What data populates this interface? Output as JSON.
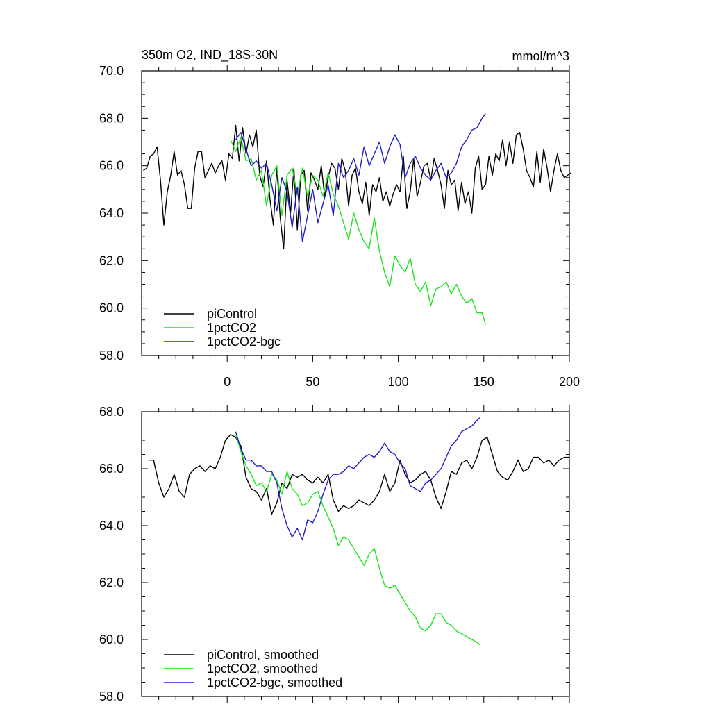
{
  "chart_data": [
    {
      "type": "line",
      "title_left": "350m O2, IND_18S-30N",
      "title_right": "mmol/m^3",
      "xlim": [
        -50,
        200
      ],
      "ylim": [
        58,
        70
      ],
      "xticks": [
        0,
        50,
        100,
        150,
        200
      ],
      "xtick_labels": [
        "0",
        "50",
        "100",
        "150",
        "200"
      ],
      "yticks": [
        58,
        60,
        62,
        64,
        66,
        68,
        70
      ],
      "ytick_labels": [
        "58.0",
        "60.0",
        "62.0",
        "64.0",
        "66.0",
        "68.0",
        "70.0"
      ],
      "legend_position": "bottom-left",
      "series": [
        {
          "name": "piControl",
          "color": "#000000",
          "x": [
            -49,
            -47,
            -45,
            -43,
            -41,
            -39,
            -37,
            -35,
            -33,
            -31,
            -29,
            -27,
            -25,
            -23,
            -21,
            -19,
            -17,
            -15,
            -13,
            -11,
            -9,
            -7,
            -5,
            -3,
            -1,
            1,
            3,
            5,
            7,
            9,
            11,
            13,
            15,
            17,
            19,
            21,
            23,
            25,
            27,
            29,
            31,
            33,
            35,
            37,
            39,
            41,
            43,
            45,
            47,
            49,
            51,
            53,
            55,
            57,
            59,
            61,
            63,
            65,
            67,
            69,
            71,
            73,
            75,
            77,
            79,
            81,
            83,
            85,
            87,
            89,
            91,
            93,
            95,
            97,
            99,
            101,
            103,
            105,
            107,
            109,
            111,
            113,
            115,
            117,
            119,
            121,
            123,
            125,
            127,
            129,
            131,
            133,
            135,
            137,
            139,
            141,
            143,
            145,
            147,
            149,
            151,
            153,
            155,
            157,
            159,
            161,
            163,
            165,
            167,
            169,
            171,
            173,
            175,
            177,
            179,
            181,
            183,
            185,
            187,
            189,
            191,
            193,
            195,
            197,
            199,
            201
          ],
          "values": [
            65.8,
            65.9,
            66.4,
            66.5,
            66.8,
            65.4,
            63.5,
            64.9,
            65.6,
            66.6,
            65.6,
            65.8,
            65.2,
            64.2,
            64.2,
            65.9,
            66.6,
            66.6,
            65.5,
            65.8,
            66.1,
            65.7,
            66.0,
            66.2,
            65.4,
            66.5,
            66.3,
            67.7,
            66.2,
            67.6,
            66.5,
            67.3,
            66.8,
            67.5,
            65.6,
            65.1,
            66.2,
            64.6,
            63.5,
            65.9,
            63.8,
            62.5,
            65.4,
            64.0,
            65.9,
            63.3,
            65.6,
            65.8,
            64.1,
            65.7,
            65.4,
            65.0,
            66.0,
            64.7,
            65.5,
            66.1,
            65.9,
            65.0,
            66.3,
            65.8,
            64.3,
            65.6,
            65.9,
            64.9,
            64.4,
            65.3,
            63.9,
            65.2,
            64.9,
            65.5,
            64.5,
            64.9,
            64.3,
            64.8,
            65.2,
            64.9,
            66.4,
            64.2,
            64.9,
            66.3,
            64.7,
            65.3,
            66.0,
            66.1,
            65.4,
            66.3,
            65.8,
            65.2,
            64.2,
            65.8,
            65.2,
            65.4,
            64.1,
            65.3,
            64.4,
            64.9,
            64.0,
            65.9,
            66.4,
            65.0,
            65.2,
            66.4,
            65.6,
            66.5,
            66.2,
            67.1,
            66.0,
            67.0,
            66.1,
            67.3,
            67.4,
            66.7,
            65.8,
            65.5,
            65.1,
            66.6,
            65.3,
            66.7,
            65.9,
            64.9,
            65.8,
            66.5,
            65.8,
            65.5,
            65.6,
            65.7
          ]
        },
        {
          "name": "1pctCO2",
          "color": "#19e619",
          "x": [
            2,
            5,
            8,
            11,
            14,
            17,
            20,
            23,
            26,
            29,
            32,
            35,
            38,
            41,
            44,
            47,
            50,
            53,
            56,
            59,
            62,
            65,
            68,
            71,
            74,
            77,
            80,
            83,
            86,
            89,
            92,
            95,
            98,
            101,
            104,
            107,
            110,
            113,
            116,
            119,
            122,
            125,
            128,
            131,
            134,
            137,
            140,
            143,
            146,
            149,
            151
          ],
          "values": [
            67.1,
            66.6,
            67.2,
            66.2,
            66.3,
            65.4,
            65.8,
            64.3,
            65.6,
            66.0,
            63.9,
            65.6,
            65.9,
            64.8,
            65.9,
            64.7,
            65.6,
            65.4,
            64.7,
            65.7,
            64.8,
            64.3,
            63.6,
            62.9,
            64.0,
            63.3,
            62.8,
            62.5,
            63.8,
            62.4,
            61.5,
            60.9,
            62.2,
            61.8,
            61.5,
            62.1,
            61.0,
            60.7,
            61.1,
            60.1,
            60.8,
            60.9,
            61.1,
            60.6,
            61.0,
            60.5,
            60.2,
            60.4,
            59.8,
            59.8,
            59.3
          ]
        },
        {
          "name": "1pctCO2-bgc",
          "color": "#1e1ec8",
          "x": [
            5,
            8,
            11,
            14,
            17,
            20,
            23,
            26,
            29,
            32,
            35,
            38,
            41,
            44,
            47,
            50,
            53,
            56,
            59,
            62,
            65,
            68,
            71,
            74,
            77,
            80,
            83,
            86,
            89,
            92,
            95,
            98,
            101,
            104,
            107,
            110,
            113,
            116,
            119,
            122,
            125,
            128,
            131,
            134,
            137,
            140,
            143,
            146,
            149,
            151
          ],
          "values": [
            67.1,
            67.4,
            66.7,
            66.0,
            66.2,
            65.9,
            66.1,
            65.2,
            64.1,
            65.5,
            64.9,
            63.4,
            65.1,
            62.8,
            63.9,
            65.0,
            63.6,
            64.4,
            65.2,
            63.9,
            66.1,
            65.5,
            65.8,
            66.3,
            65.6,
            66.8,
            66.0,
            66.5,
            67.0,
            66.1,
            66.8,
            67.3,
            66.9,
            65.5,
            66.1,
            66.4,
            65.9,
            65.6,
            65.4,
            65.8,
            66.1,
            65.5,
            65.7,
            66.1,
            66.8,
            67.1,
            67.5,
            67.6,
            68.0,
            68.2
          ]
        }
      ]
    },
    {
      "type": "line",
      "xlim": [
        -50,
        200
      ],
      "ylim": [
        58,
        68
      ],
      "xticks": [
        0,
        50,
        100,
        150,
        200
      ],
      "yticks": [
        58,
        60,
        62,
        64,
        66,
        68
      ],
      "ytick_labels": [
        "58.0",
        "60.0",
        "62.0",
        "64.0",
        "66.0",
        "68.0"
      ],
      "legend_position": "bottom-left",
      "series": [
        {
          "name": "piControl, smoothed",
          "color": "#000000",
          "x": [
            -46,
            -43,
            -40,
            -37,
            -34,
            -31,
            -28,
            -25,
            -22,
            -19,
            -16,
            -13,
            -10,
            -7,
            -4,
            -1,
            2,
            5,
            8,
            11,
            14,
            17,
            20,
            23,
            26,
            29,
            32,
            35,
            38,
            41,
            44,
            47,
            50,
            53,
            56,
            59,
            62,
            65,
            68,
            71,
            74,
            77,
            80,
            83,
            86,
            89,
            92,
            95,
            98,
            101,
            104,
            107,
            110,
            113,
            116,
            119,
            122,
            125,
            128,
            131,
            134,
            137,
            140,
            143,
            146,
            149,
            152,
            155,
            158,
            161,
            164,
            167,
            170,
            173,
            176,
            179,
            182,
            185,
            188,
            191,
            194,
            197,
            200
          ],
          "values": [
            66.3,
            66.3,
            65.5,
            65.0,
            65.3,
            65.8,
            65.2,
            65.0,
            65.8,
            66.0,
            66.1,
            65.9,
            66.1,
            66.0,
            66.4,
            67.0,
            67.2,
            67.1,
            66.8,
            65.7,
            65.3,
            65.2,
            64.9,
            65.3,
            64.4,
            64.8,
            65.5,
            65.3,
            65.8,
            65.7,
            65.8,
            65.6,
            65.5,
            65.7,
            65.5,
            65.8,
            64.9,
            64.5,
            64.7,
            64.6,
            64.7,
            64.9,
            64.8,
            64.7,
            64.9,
            65.2,
            65.8,
            65.2,
            65.5,
            66.3,
            65.8,
            65.5,
            65.6,
            65.8,
            65.9,
            65.6,
            65.0,
            64.6,
            65.2,
            65.9,
            65.8,
            66.2,
            66.3,
            66.0,
            66.4,
            67.0,
            67.1,
            66.5,
            65.9,
            65.7,
            65.6,
            65.9,
            66.3,
            65.9,
            66.0,
            66.4,
            66.4,
            66.2,
            66.3,
            66.1,
            66.3,
            66.4,
            66.4
          ]
        },
        {
          "name": "1pctCO2, smoothed",
          "color": "#19e619",
          "x": [
            5,
            8,
            11,
            14,
            17,
            20,
            23,
            26,
            29,
            32,
            35,
            38,
            41,
            44,
            47,
            50,
            53,
            56,
            59,
            62,
            65,
            68,
            71,
            74,
            77,
            80,
            83,
            86,
            89,
            92,
            95,
            98,
            101,
            104,
            107,
            110,
            113,
            116,
            119,
            122,
            125,
            128,
            131,
            134,
            137,
            140,
            143,
            146,
            148
          ],
          "values": [
            67.2,
            66.6,
            66.1,
            65.8,
            65.4,
            65.5,
            65.2,
            65.8,
            65.6,
            65.1,
            65.9,
            65.3,
            65.1,
            64.7,
            64.8,
            65.1,
            65.2,
            64.7,
            64.3,
            63.9,
            63.3,
            63.6,
            63.5,
            63.2,
            62.9,
            62.6,
            63.0,
            63.2,
            62.5,
            61.9,
            61.8,
            61.9,
            61.6,
            61.3,
            61.0,
            60.8,
            60.4,
            60.3,
            60.5,
            60.9,
            60.9,
            60.6,
            60.5,
            60.3,
            60.2,
            60.1,
            60.0,
            59.9,
            59.8
          ]
        },
        {
          "name": "1pctCO2-bgc, smoothed",
          "color": "#1e1ec8",
          "x": [
            5,
            8,
            11,
            14,
            17,
            20,
            23,
            26,
            29,
            32,
            35,
            38,
            41,
            44,
            47,
            50,
            53,
            56,
            59,
            62,
            65,
            68,
            71,
            74,
            77,
            80,
            83,
            86,
            89,
            92,
            95,
            98,
            101,
            104,
            107,
            110,
            113,
            116,
            119,
            122,
            125,
            128,
            131,
            134,
            137,
            140,
            143,
            146,
            148
          ],
          "values": [
            67.3,
            66.7,
            66.3,
            66.3,
            66.1,
            66.1,
            65.9,
            65.9,
            65.5,
            64.6,
            64.0,
            63.6,
            63.9,
            63.5,
            64.2,
            64.1,
            64.5,
            65.1,
            65.6,
            65.8,
            65.8,
            65.9,
            66.1,
            66.0,
            66.2,
            66.4,
            66.5,
            66.4,
            66.6,
            66.9,
            66.6,
            66.5,
            66.2,
            66.0,
            65.4,
            65.3,
            65.2,
            65.5,
            65.6,
            65.8,
            66.0,
            66.4,
            66.8,
            67.0,
            67.3,
            67.4,
            67.5,
            67.7,
            67.8
          ]
        }
      ]
    }
  ]
}
